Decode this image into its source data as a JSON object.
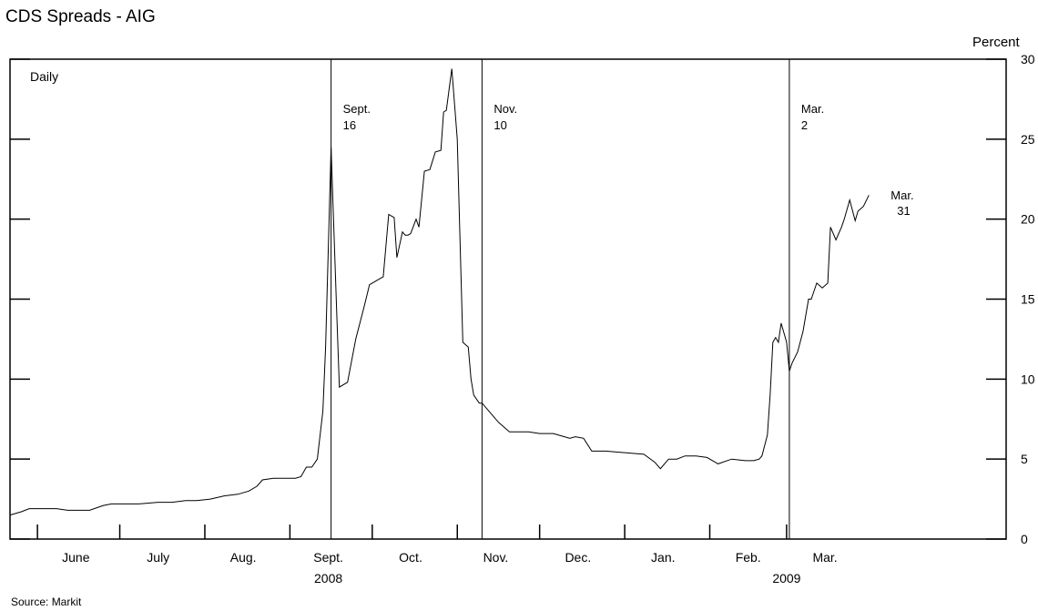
{
  "title": "CDS Spreads - AIG",
  "units_label": "Percent",
  "frequency_label": "Daily",
  "source": "Source: Markit",
  "chart_data": {
    "type": "line",
    "title": "CDS Spreads - AIG",
    "xlabel": "",
    "ylabel": "Percent",
    "ylim": [
      0,
      30
    ],
    "y_ticks": [
      0,
      5,
      10,
      15,
      20,
      25,
      30
    ],
    "y_axis_side": "right",
    "grid": false,
    "x_range": [
      "2008-05-22",
      "2009-05-20"
    ],
    "month_labels": [
      {
        "label": "June",
        "date": "2008-06-15"
      },
      {
        "label": "July",
        "date": "2008-07-15"
      },
      {
        "label": "Aug.",
        "date": "2008-08-15"
      },
      {
        "label": "Sept.",
        "date": "2008-09-15"
      },
      {
        "label": "Oct.",
        "date": "2008-10-15"
      },
      {
        "label": "Nov.",
        "date": "2008-11-15"
      },
      {
        "label": "Dec.",
        "date": "2008-12-15"
      },
      {
        "label": "Jan.",
        "date": "2009-01-15"
      },
      {
        "label": "Feb.",
        "date": "2009-02-15"
      },
      {
        "label": "Mar.",
        "date": "2009-03-15"
      }
    ],
    "month_boundaries": [
      "2008-06-01",
      "2008-07-01",
      "2008-08-01",
      "2008-09-01",
      "2008-10-01",
      "2008-11-01",
      "2008-12-01",
      "2009-01-01",
      "2009-02-01",
      "2009-03-01"
    ],
    "year_labels": [
      {
        "label": "2008",
        "date": "2008-09-15"
      },
      {
        "label": "2009",
        "date": "2009-03-01"
      }
    ],
    "event_lines": [
      {
        "line1": "Sept.",
        "line2": "16",
        "date": "2008-09-16"
      },
      {
        "line1": "Nov.",
        "line2": "10",
        "date": "2008-11-10"
      },
      {
        "line1": "Mar.",
        "line2": "2",
        "date": "2009-03-02"
      }
    ],
    "end_annotation": {
      "line1": "Mar.",
      "line2": "31"
    },
    "series": [
      {
        "x": [
          "2008-05-22",
          "2008-05-26",
          "2008-05-29",
          "2008-06-01",
          "2008-06-05",
          "2008-06-08",
          "2008-06-12",
          "2008-06-15",
          "2008-06-20",
          "2008-06-25",
          "2008-06-28",
          "2008-07-02",
          "2008-07-08",
          "2008-07-15",
          "2008-07-20",
          "2008-07-25",
          "2008-07-29",
          "2008-08-03",
          "2008-08-08",
          "2008-08-13",
          "2008-08-17",
          "2008-08-20",
          "2008-08-22",
          "2008-08-26",
          "2008-08-28",
          "2008-08-30",
          "2008-09-01",
          "2008-09-03",
          "2008-09-05",
          "2008-09-07",
          "2008-09-09",
          "2008-09-11",
          "2008-09-13",
          "2008-09-14",
          "2008-09-16",
          "2008-09-18",
          "2008-09-19",
          "2008-09-22",
          "2008-09-25",
          "2008-09-28",
          "2008-09-30",
          "2008-10-03",
          "2008-10-05",
          "2008-10-07",
          "2008-10-09",
          "2008-10-10",
          "2008-10-12",
          "2008-10-13",
          "2008-10-14",
          "2008-10-15",
          "2008-10-17",
          "2008-10-18",
          "2008-10-20",
          "2008-10-22",
          "2008-10-24",
          "2008-10-26",
          "2008-10-27",
          "2008-10-28",
          "2008-10-30",
          "2008-11-01",
          "2008-11-03",
          "2008-11-05",
          "2008-11-06",
          "2008-11-07",
          "2008-11-09",
          "2008-11-10",
          "2008-11-12",
          "2008-11-14",
          "2008-11-16",
          "2008-11-18",
          "2008-11-20",
          "2008-11-24",
          "2008-11-27",
          "2008-12-01",
          "2008-12-06",
          "2008-12-10",
          "2008-12-12",
          "2008-12-14",
          "2008-12-17",
          "2008-12-20",
          "2008-12-25",
          "2009-01-01",
          "2009-01-08",
          "2009-01-12",
          "2009-01-14",
          "2009-01-17",
          "2009-01-20",
          "2009-01-23",
          "2009-01-27",
          "2009-01-31",
          "2009-02-04",
          "2009-02-09",
          "2009-02-14",
          "2009-02-17",
          "2009-02-19",
          "2009-02-20",
          "2009-02-22",
          "2009-02-23",
          "2009-02-24",
          "2009-02-25",
          "2009-02-26",
          "2009-02-27",
          "2009-03-01",
          "2009-03-02",
          "2009-03-03",
          "2009-03-05",
          "2009-03-07",
          "2009-03-09",
          "2009-03-10",
          "2009-03-12",
          "2009-03-14",
          "2009-03-16",
          "2009-03-17",
          "2009-03-19",
          "2009-03-21",
          "2009-03-22",
          "2009-03-24",
          "2009-03-26",
          "2009-03-27",
          "2009-03-29",
          "2009-03-31"
        ],
        "y": [
          1.5,
          1.7,
          1.9,
          1.9,
          1.9,
          1.9,
          1.8,
          1.8,
          1.8,
          2.1,
          2.2,
          2.2,
          2.2,
          2.3,
          2.3,
          2.4,
          2.4,
          2.5,
          2.7,
          2.8,
          3.0,
          3.3,
          3.7,
          3.8,
          3.8,
          3.8,
          3.8,
          3.8,
          3.9,
          4.5,
          4.5,
          5.0,
          8.0,
          12.0,
          24.5,
          14.5,
          9.5,
          9.8,
          12.5,
          14.5,
          15.9,
          16.2,
          16.4,
          20.3,
          20.1,
          17.6,
          19.2,
          19.0,
          19.0,
          19.1,
          20.0,
          19.5,
          23.0,
          23.1,
          24.2,
          24.3,
          26.7,
          26.8,
          29.4,
          25.0,
          12.3,
          12.0,
          10.0,
          9.0,
          8.5,
          8.5,
          8.1,
          7.7,
          7.3,
          7.0,
          6.7,
          6.7,
          6.7,
          6.6,
          6.6,
          6.4,
          6.3,
          6.4,
          6.3,
          5.5,
          5.5,
          5.4,
          5.3,
          4.8,
          4.4,
          5.0,
          5.0,
          5.2,
          5.2,
          5.1,
          4.7,
          5.0,
          4.9,
          4.9,
          5.0,
          5.2,
          6.5,
          9.0,
          12.3,
          12.6,
          12.3,
          13.5,
          12.3,
          10.5,
          11.0,
          11.7,
          13.0,
          15.0,
          15.0,
          16.0,
          15.7,
          16.0,
          19.5,
          18.7,
          19.5,
          20.0,
          21.2,
          19.9,
          20.5,
          20.8,
          21.5
        ]
      }
    ]
  }
}
